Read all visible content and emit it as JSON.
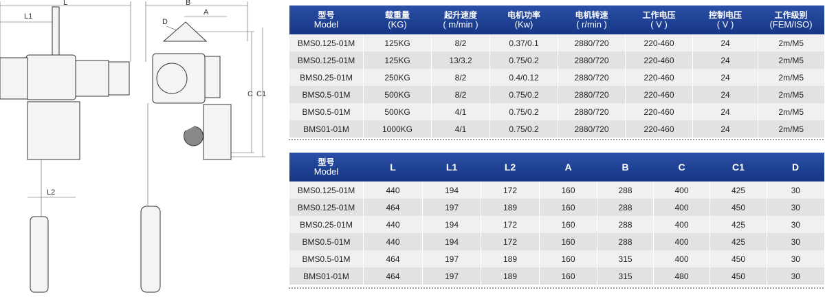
{
  "drawing": {
    "labels": {
      "L": "L",
      "L1": "L1",
      "L2": "L2",
      "B": "B",
      "A": "A",
      "D": "D",
      "C": "C",
      "C1": "C1"
    }
  },
  "tables": [
    {
      "headers": [
        [
          "型号",
          "Model"
        ],
        [
          "载重量",
          "(KG)"
        ],
        [
          "起升速度",
          "( m/min )"
        ],
        [
          "电机功率",
          "(Kw)"
        ],
        [
          "电机转速",
          "( r/min )"
        ],
        [
          "工作电压",
          "( V )"
        ],
        [
          "控制电压",
          "( V )"
        ],
        [
          "工作级别",
          "(FEM/ISO)"
        ]
      ],
      "rows": [
        [
          "BMS0.125-01M",
          "125KG",
          "8/2",
          "0.37/0.1",
          "2880/720",
          "220-460",
          "24",
          "2m/M5"
        ],
        [
          "BMS0.125-01M",
          "125KG",
          "13/3.2",
          "0.75/0.2",
          "2880/720",
          "220-460",
          "24",
          "2m/M5"
        ],
        [
          "BMS0.25-01M",
          "250KG",
          "8/2",
          "0.4/0.12",
          "2880/720",
          "220-460",
          "24",
          "2m/M5"
        ],
        [
          "BMS0.5-01M",
          "500KG",
          "8/2",
          "0.75/0.2",
          "2880/720",
          "220-460",
          "24",
          "2m/M5"
        ],
        [
          "BMS0.5-01M",
          "500KG",
          "4/1",
          "0.75/0.2",
          "2880/720",
          "220-460",
          "24",
          "2m/M5"
        ],
        [
          "BMS01-01M",
          "1000KG",
          "4/1",
          "0.75/0.2",
          "2880/720",
          "220-460",
          "24",
          "2m/M5"
        ]
      ]
    },
    {
      "headers": [
        [
          "型号",
          "Model"
        ],
        [
          "L"
        ],
        [
          "L1"
        ],
        [
          "L2"
        ],
        [
          "A"
        ],
        [
          "B"
        ],
        [
          "C"
        ],
        [
          "C1"
        ],
        [
          "D"
        ]
      ],
      "rows": [
        [
          "BMS0.125-01M",
          "440",
          "194",
          "172",
          "160",
          "288",
          "400",
          "425",
          "30"
        ],
        [
          "BMS0.125-01M",
          "464",
          "197",
          "189",
          "160",
          "288",
          "400",
          "450",
          "30"
        ],
        [
          "BMS0.25-01M",
          "440",
          "194",
          "172",
          "160",
          "288",
          "400",
          "425",
          "30"
        ],
        [
          "BMS0.5-01M",
          "440",
          "194",
          "172",
          "160",
          "288",
          "400",
          "425",
          "30"
        ],
        [
          "BMS0.5-01M",
          "464",
          "197",
          "189",
          "160",
          "315",
          "400",
          "450",
          "30"
        ],
        [
          "BMS01-01M",
          "464",
          "197",
          "189",
          "160",
          "315",
          "480",
          "450",
          "30"
        ]
      ]
    }
  ]
}
